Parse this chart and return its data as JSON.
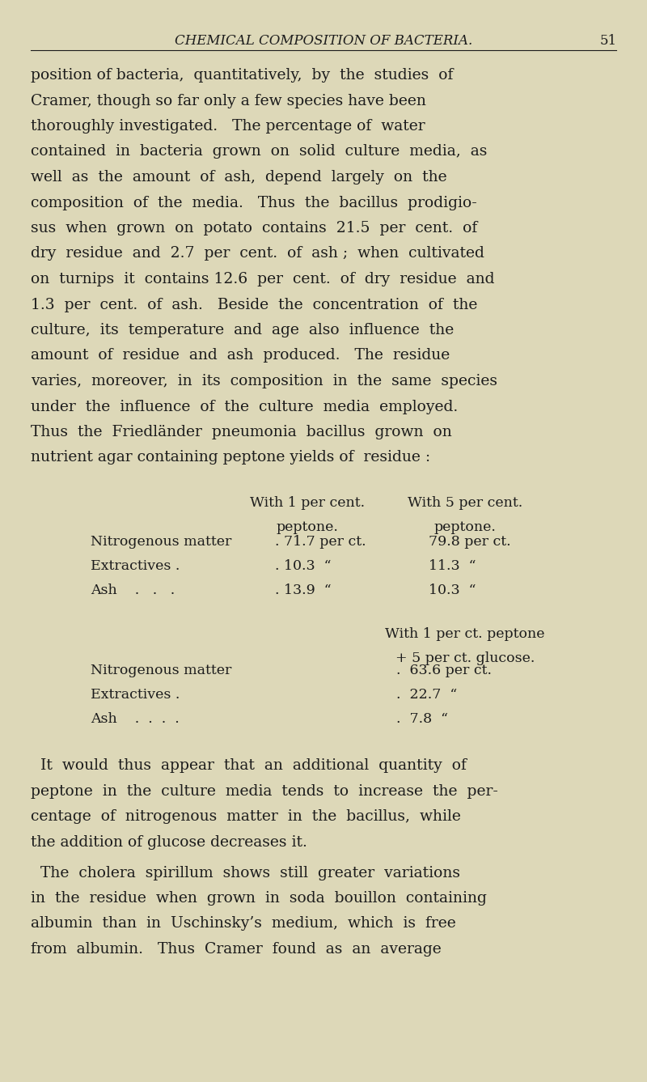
{
  "bg_color": "#ddd8b8",
  "text_color": "#1c1c1c",
  "header_text": "CHEMICAL COMPOSITION OF BACTERIA.",
  "page_number": "51",
  "font_size_body": 13.5,
  "font_size_header": 12.0,
  "font_size_table": 12.5,
  "para1_lines": [
    "position of bacteria,  quantitatively,  by  the  studies  of",
    "Cramer, though so far only a few species have been",
    "thoroughly investigated.   The percentage of  water",
    "contained  in  bacteria  grown  on  solid  culture  media,  as",
    "well  as  the  amount  of  ash,  depend  largely  on  the",
    "composition  of  the  media.   Thus  the  bacillus  prodigio-",
    "sus  when  grown  on  potato  contains  21.5  per  cent.  of",
    "dry  residue  and  2.7  per  cent.  of  ash ;  when  cultivated",
    "on  turnips  it  contains 12.6  per  cent.  of  dry  residue  and",
    "1.3  per  cent.  of  ash.   Beside  the  concentration  of  the",
    "culture,  its  temperature  and  age  also  influence  the",
    "amount  of  residue  and  ash  produced.   The  residue",
    "varies,  moreover,  in  its  composition  in  the  same  species",
    "under  the  influence  of  the  culture  media  employed.",
    "Thus  the  Friedländer  pneumonia  bacillus  grown  on",
    "nutrient agar containing peptone yields of  residue :"
  ],
  "table_col1_header": [
    "With 1 per cent.",
    "peptone."
  ],
  "table_col2_header": [
    "With 5 per cent.",
    "peptone."
  ],
  "table_section1": [
    {
      "label": "Nitrogenous matter",
      "dots": ".",
      "val1": "71.7 per ct.",
      "val2": "79.8 per ct."
    },
    {
      "label": "Extractives .",
      "dots": ".",
      "val1": "10.3  “",
      "val2": "11.3  “"
    },
    {
      "label": "Ash    .   .   .",
      "dots": ".",
      "val1": "13.9  “",
      "val2": "10.3  “"
    }
  ],
  "table_col3_header": [
    "With 1 per ct. peptone",
    "+ 5 per ct. glucose."
  ],
  "table_section2": [
    {
      "label": "Nitrogenous matter",
      "dots": ".",
      "val": "63.6 per ct."
    },
    {
      "label": "Extractives .",
      "dots": ".",
      "val": "22.7  “"
    },
    {
      "label": "Ash    .  .  .  .",
      "dots": ".",
      "val": "7.8  “"
    }
  ],
  "para2_lines": [
    "  It  would  thus  appear  that  an  additional  quantity  of",
    "peptone  in  the  culture  media  tends  to  increase  the  per-",
    "centage  of  nitrogenous  matter  in  the  bacillus,  while",
    "the addition of glucose decreases it."
  ],
  "para3_lines": [
    "  The  cholera  spirillum  shows  still  greater  variations",
    "in  the  residue  when  grown  in  soda  bouillon  containing",
    "albumin  than  in  Uschinsky’s  medium,  which  is  free",
    "from  albumin.   Thus  Cramer  found  as  an  average"
  ]
}
